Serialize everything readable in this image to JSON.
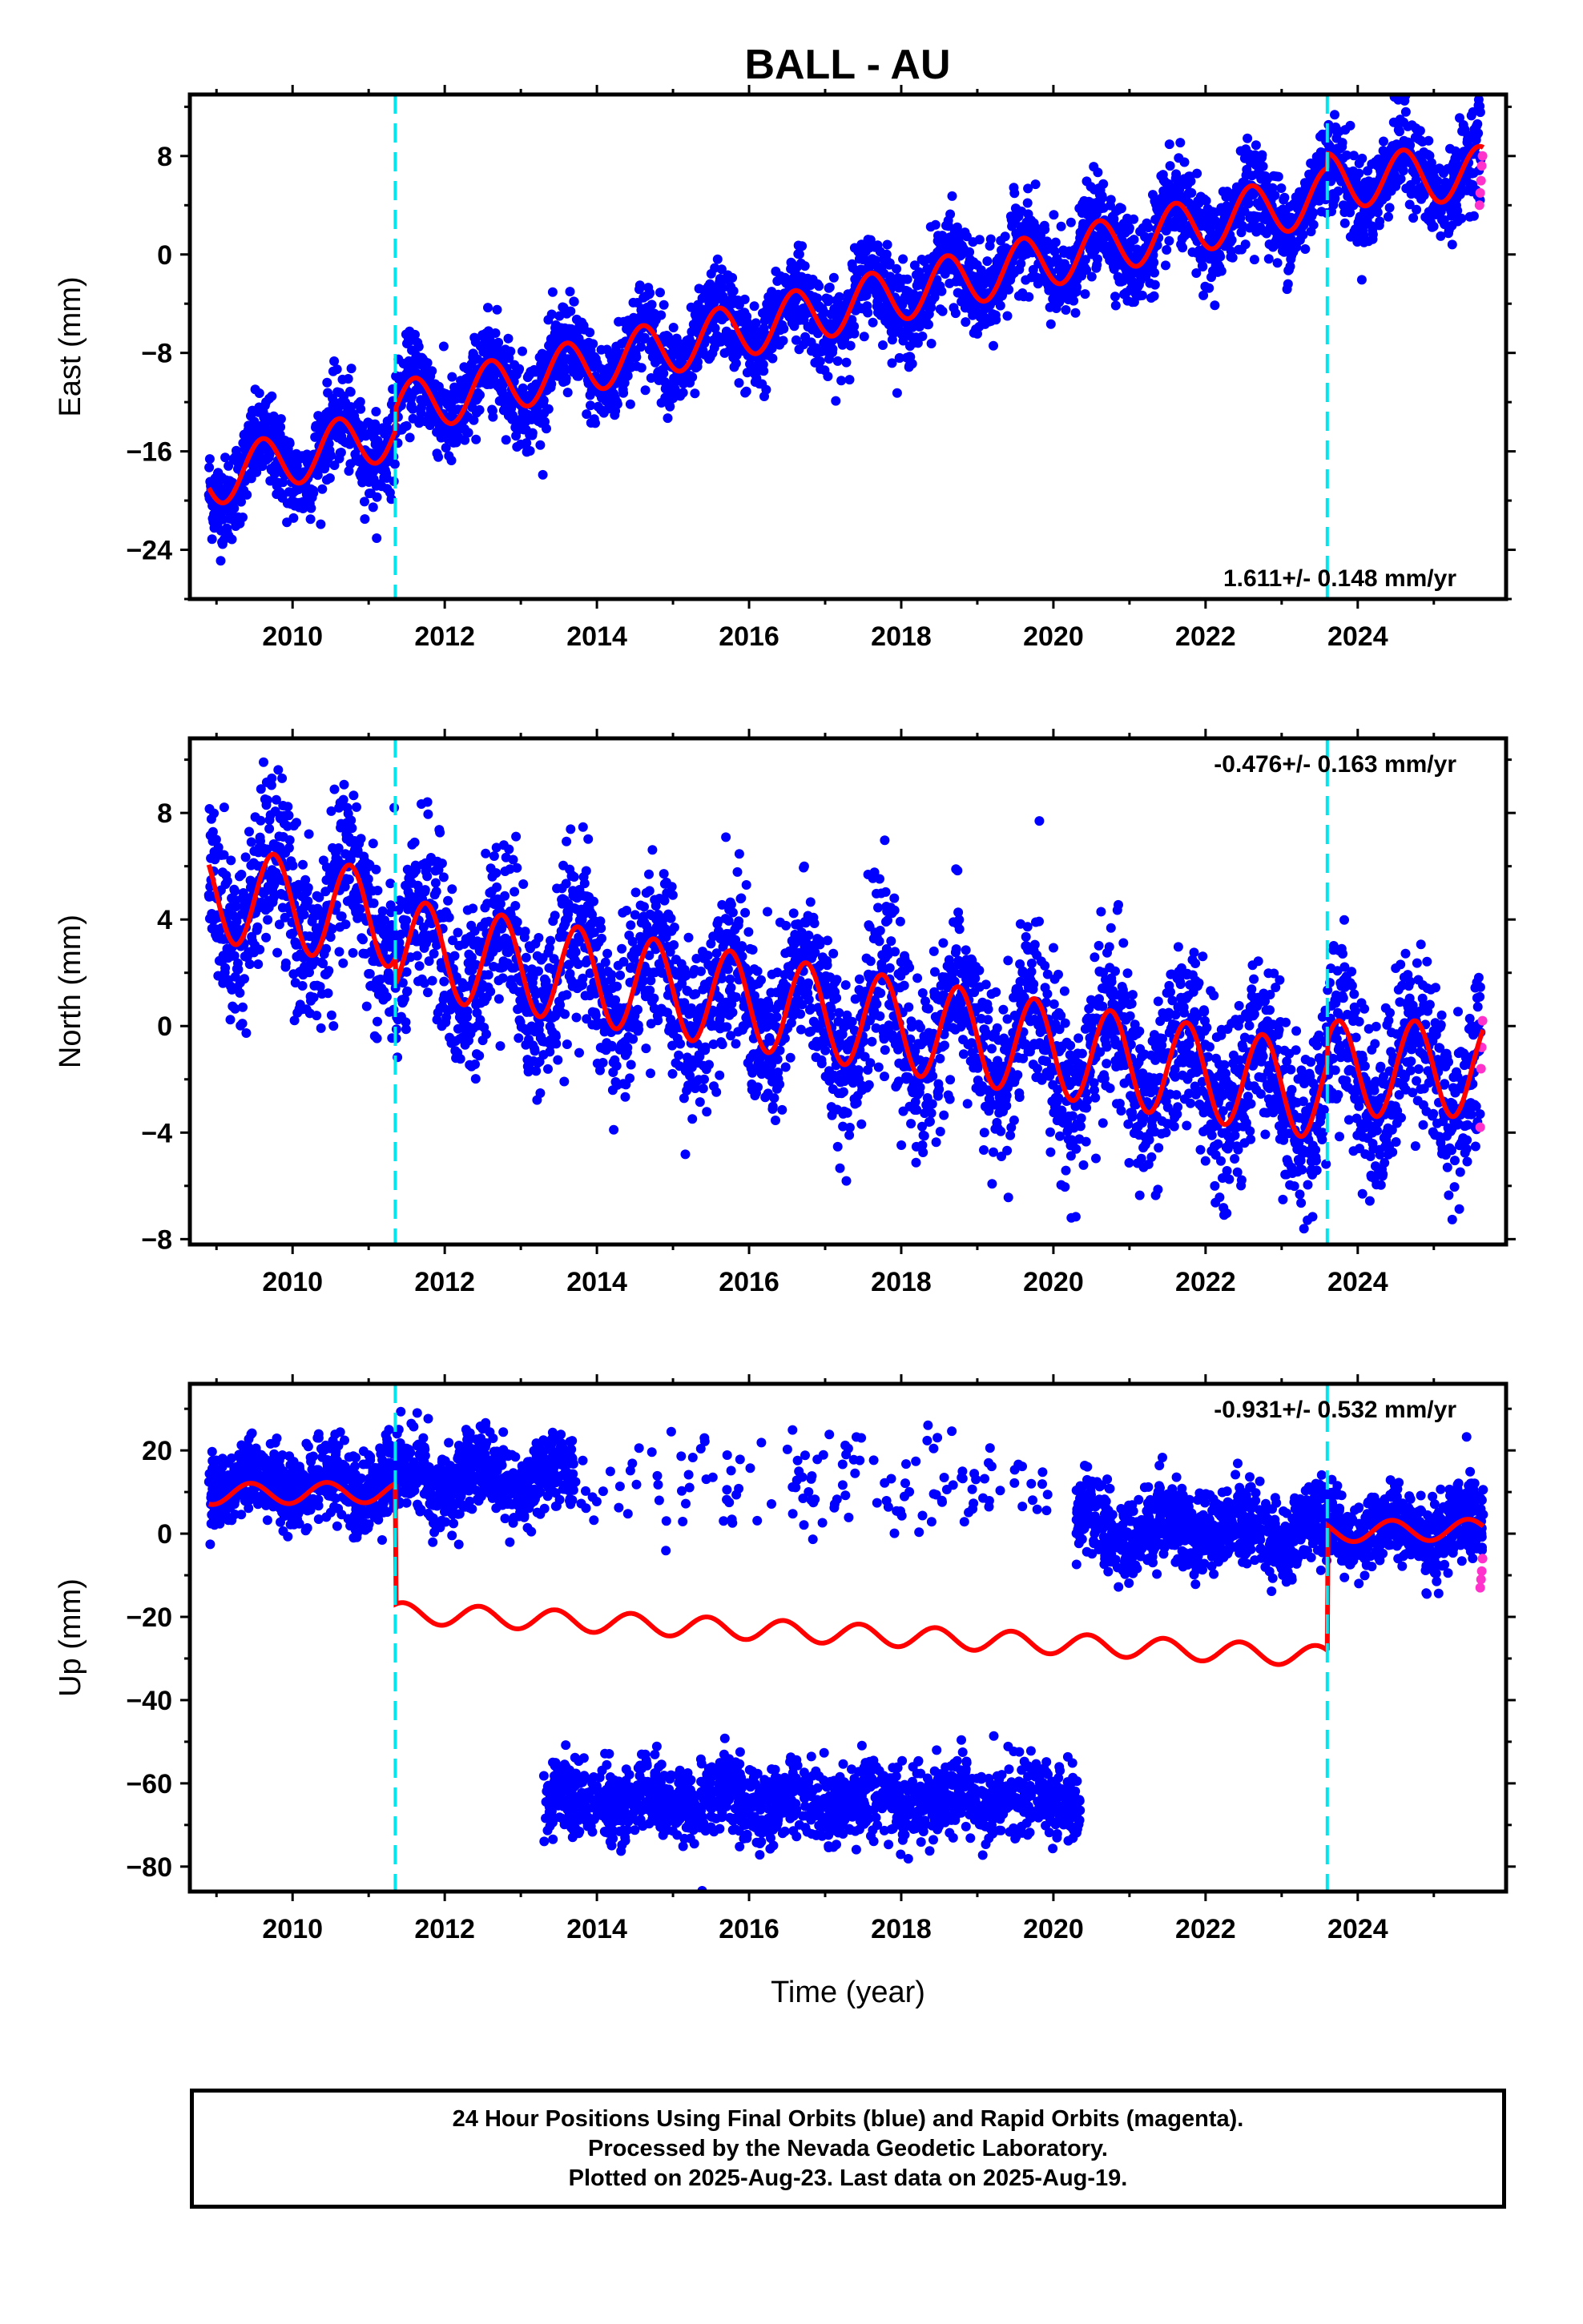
{
  "title": "BALL - AU",
  "colors": {
    "final_orbits": "#0000ff",
    "rapid_orbits": "#ff33cc",
    "model": "#ff0000",
    "offset_lines": "#00e5ee"
  },
  "chart_data": [
    {
      "type": "scatter",
      "component": "East",
      "ylabel": "East (mm)",
      "xlabel": "",
      "rate_label": "1.611+/- 0.148 mm/yr",
      "rate_position": "bottom-right",
      "xlim": [
        2008.65,
        2025.95
      ],
      "ylim": [
        -28,
        13
      ],
      "yticks": [
        -24,
        -16,
        -8,
        0,
        8
      ],
      "ytick_labels": [
        "−24",
        "−16",
        "−8",
        "0",
        "8"
      ],
      "xticks": [
        2010,
        2012,
        2014,
        2016,
        2018,
        2020,
        2022,
        2024
      ],
      "xtick_labels": [
        "2010",
        "2012",
        "2014",
        "2016",
        "2018",
        "2020",
        "2022",
        "2024"
      ],
      "offset_epochs": [
        2011.35,
        2023.6
      ],
      "rapid_orbit_values": [
        8.0,
        7.2,
        6.0,
        5.0,
        4.0
      ],
      "model_segments": [
        {
          "t0": 2008.9,
          "t1": 2011.35,
          "a0": -18.3,
          "a1": -18.3,
          "rate": 1.611,
          "amp": 2.2,
          "phase": 0.35
        },
        {
          "t0": 2011.35,
          "t1": 2023.6,
          "a0": -12.6,
          "a1": 4.8,
          "rate": 0.0,
          "amp": 2.2,
          "phase": 0.35
        },
        {
          "t0": 2023.6,
          "t1": 2025.65,
          "a0": 6.0,
          "a1": 6.6,
          "rate": 0.0,
          "amp": 2.2,
          "phase": 0.35
        }
      ],
      "data_gaps": [],
      "scatter_sigma": 1.8
    },
    {
      "type": "scatter",
      "component": "North",
      "ylabel": "North (mm)",
      "xlabel": "",
      "rate_label": "-0.476+/- 0.163 mm/yr",
      "rate_position": "top-right",
      "xlim": [
        2008.65,
        2025.95
      ],
      "ylim": [
        -8.2,
        10.8
      ],
      "yticks": [
        -8,
        -4,
        0,
        4,
        8
      ],
      "ytick_labels": [
        "−8",
        "−4",
        "0",
        "4",
        "8"
      ],
      "xticks": [
        2010,
        2012,
        2014,
        2016,
        2018,
        2020,
        2022,
        2024
      ],
      "xtick_labels": [
        "2010",
        "2012",
        "2014",
        "2016",
        "2018",
        "2020",
        "2022",
        "2024"
      ],
      "offset_epochs": [
        2011.35,
        2023.6
      ],
      "rapid_orbit_values": [
        0.2,
        -0.8,
        -1.6,
        -3.8
      ],
      "model_segments": [
        {
          "t0": 2008.9,
          "t1": 2011.35,
          "a0": 5.0,
          "a1": 4.0,
          "rate": 0.0,
          "amp": 1.8,
          "phase": 0.5
        },
        {
          "t0": 2011.35,
          "t1": 2023.6,
          "a0": 3.0,
          "a1": -2.5,
          "rate": 0.0,
          "amp": 1.8,
          "phase": 0.5
        },
        {
          "t0": 2023.6,
          "t1": 2025.65,
          "a0": -1.6,
          "a1": -1.6,
          "rate": 0.0,
          "amp": 1.8,
          "phase": 0.5
        }
      ],
      "data_gaps": [],
      "scatter_sigma": 1.6
    },
    {
      "type": "scatter",
      "component": "Up",
      "ylabel": "Up (mm)",
      "xlabel": "Time (year)",
      "rate_label": "-0.931+/- 0.532 mm/yr",
      "rate_position": "top-right",
      "xlim": [
        2008.65,
        2025.95
      ],
      "ylim": [
        -86,
        36
      ],
      "yticks": [
        -80,
        -60,
        -40,
        -20,
        0,
        20
      ],
      "ytick_labels": [
        "−80",
        "−60",
        "−40",
        "−20",
        "0",
        "20"
      ],
      "xticks": [
        2010,
        2012,
        2014,
        2016,
        2018,
        2020,
        2022,
        2024
      ],
      "xtick_labels": [
        "2010",
        "2012",
        "2014",
        "2016",
        "2018",
        "2020",
        "2022",
        "2024"
      ],
      "offset_epochs": [
        2011.35,
        2023.6
      ],
      "rapid_orbit_values": [
        -6,
        -9,
        -11,
        -13
      ],
      "model_segments": [
        {
          "t0": 2008.9,
          "t1": 2011.35,
          "a0": 9.5,
          "a1": 10.0,
          "rate": 0.0,
          "amp": 2.5,
          "phase": 0.2
        },
        {
          "t0": 2011.35,
          "t1": 2023.6,
          "a0": -19.0,
          "a1": -29.5,
          "rate": 0.0,
          "amp": 2.5,
          "phase": 0.2
        },
        {
          "t0": 2023.6,
          "t1": 2025.65,
          "a0": 0.5,
          "a1": 1.0,
          "rate": 0.0,
          "amp": 2.5,
          "phase": 0.2
        }
      ],
      "point_clusters": [
        {
          "t0": 2008.9,
          "t1": 2011.35,
          "center": 12,
          "sigma": 4.5,
          "n": 700
        },
        {
          "t0": 2011.35,
          "t1": 2013.7,
          "center": 13,
          "sigma": 4.5,
          "n": 650
        },
        {
          "t0": 2013.7,
          "t1": 2020.0,
          "center": 12,
          "sigma": 6,
          "n": 150
        },
        {
          "t0": 2020.3,
          "t1": 2023.6,
          "center": 1,
          "sigma": 4.5,
          "n": 900
        },
        {
          "t0": 2023.6,
          "t1": 2025.65,
          "center": 1,
          "sigma": 4.5,
          "n": 550
        },
        {
          "t0": 2013.3,
          "t1": 2020.35,
          "center": -64,
          "sigma": 4.5,
          "n": 1600
        }
      ],
      "data_gaps": [],
      "scatter_sigma": 4.5
    }
  ],
  "footer": {
    "line1": "24 Hour Positions Using Final Orbits (blue) and Rapid Orbits (magenta).",
    "line2": "Processed by the Nevada Geodetic Laboratory.",
    "line3": "Plotted on 2025-Aug-23. Last data on 2025-Aug-19."
  }
}
